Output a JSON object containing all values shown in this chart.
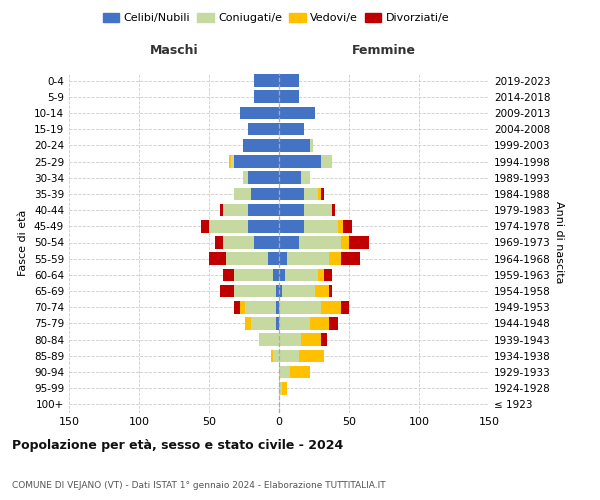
{
  "age_groups": [
    "100+",
    "95-99",
    "90-94",
    "85-89",
    "80-84",
    "75-79",
    "70-74",
    "65-69",
    "60-64",
    "55-59",
    "50-54",
    "45-49",
    "40-44",
    "35-39",
    "30-34",
    "25-29",
    "20-24",
    "15-19",
    "10-14",
    "5-9",
    "0-4"
  ],
  "birth_years": [
    "≤ 1923",
    "1924-1928",
    "1929-1933",
    "1934-1938",
    "1939-1943",
    "1944-1948",
    "1949-1953",
    "1954-1958",
    "1959-1963",
    "1964-1968",
    "1969-1973",
    "1974-1978",
    "1979-1983",
    "1984-1988",
    "1989-1993",
    "1994-1998",
    "1999-2003",
    "2004-2008",
    "2009-2013",
    "2014-2018",
    "2019-2023"
  ],
  "male": {
    "celibi": [
      0,
      0,
      0,
      0,
      0,
      2,
      2,
      2,
      4,
      8,
      18,
      22,
      22,
      20,
      22,
      32,
      26,
      22,
      28,
      18,
      18
    ],
    "coniugati": [
      0,
      0,
      0,
      4,
      14,
      18,
      22,
      30,
      28,
      30,
      22,
      28,
      18,
      12,
      4,
      2,
      0,
      0,
      0,
      0,
      0
    ],
    "vedovi": [
      0,
      0,
      0,
      2,
      0,
      4,
      4,
      0,
      0,
      0,
      0,
      0,
      0,
      0,
      0,
      2,
      0,
      0,
      0,
      0,
      0
    ],
    "divorziati": [
      0,
      0,
      0,
      0,
      0,
      0,
      4,
      10,
      8,
      12,
      6,
      6,
      2,
      0,
      0,
      0,
      0,
      0,
      0,
      0,
      0
    ]
  },
  "female": {
    "nubili": [
      0,
      0,
      0,
      0,
      0,
      0,
      0,
      2,
      4,
      6,
      14,
      18,
      18,
      18,
      16,
      30,
      22,
      18,
      26,
      14,
      14
    ],
    "coniugate": [
      0,
      2,
      8,
      14,
      16,
      22,
      30,
      24,
      24,
      30,
      30,
      24,
      20,
      10,
      6,
      8,
      2,
      0,
      0,
      0,
      0
    ],
    "vedove": [
      0,
      4,
      14,
      18,
      14,
      14,
      14,
      10,
      4,
      8,
      6,
      4,
      0,
      2,
      0,
      0,
      0,
      0,
      0,
      0,
      0
    ],
    "divorziate": [
      0,
      0,
      0,
      0,
      4,
      6,
      6,
      2,
      6,
      14,
      14,
      6,
      2,
      2,
      0,
      0,
      0,
      0,
      0,
      0,
      0
    ]
  },
  "colors": {
    "celibi": "#4472c4",
    "coniugati": "#c5d9a0",
    "vedovi": "#ffc000",
    "divorziati": "#c00000"
  },
  "xlim": 150,
  "title": "Popolazione per età, sesso e stato civile - 2024",
  "subtitle": "COMUNE DI VEJANO (VT) - Dati ISTAT 1° gennaio 2024 - Elaborazione TUTTITALIA.IT",
  "xlabel_left": "Maschi",
  "xlabel_right": "Femmine",
  "ylabel_left": "Fasce di età",
  "ylabel_right": "Anni di nascita",
  "legend_labels": [
    "Celibi/Nubili",
    "Coniugati/e",
    "Vedovi/e",
    "Divorziati/e"
  ],
  "background_color": "#ffffff",
  "grid_color": "#cccccc"
}
